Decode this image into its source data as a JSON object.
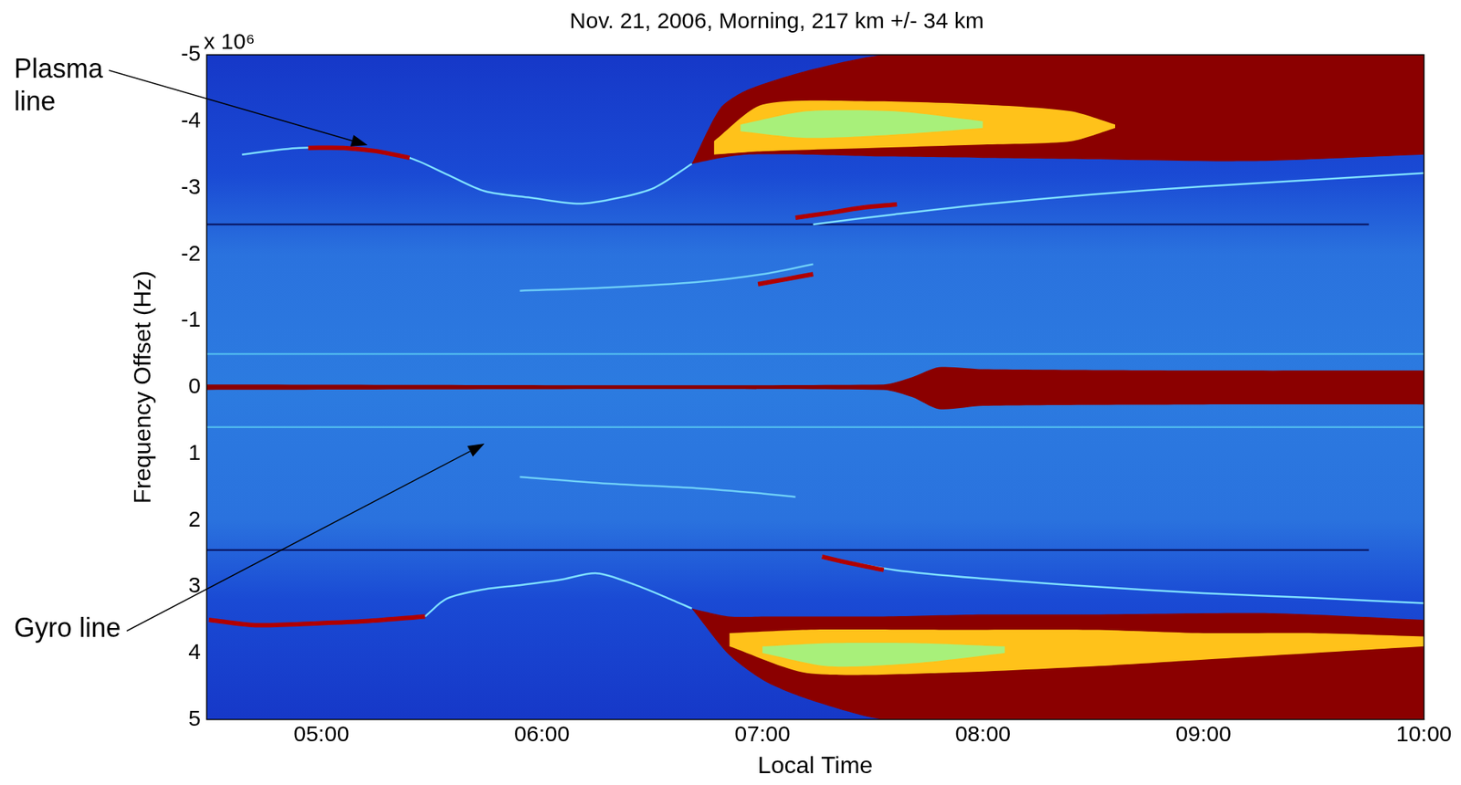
{
  "chart_data": {
    "type": "line",
    "title": "Nov. 21, 2006, Morning, 217 km +/- 34 km",
    "x_label": "Local Time",
    "y_label": "Frequency Offset (Hz)",
    "y_unit_label": "x 10⁶",
    "xlim": [
      4.48,
      10
    ],
    "xticks": [
      {
        "value": 5,
        "label": "05:00"
      },
      {
        "value": 6,
        "label": "06:00"
      },
      {
        "value": 7,
        "label": "07:00"
      },
      {
        "value": 8,
        "label": "08:00"
      },
      {
        "value": 9,
        "label": "09:00"
      },
      {
        "value": 10,
        "label": "10:00"
      }
    ],
    "ylim": [
      5,
      -5
    ],
    "yticks": [
      -5,
      -4,
      -3,
      -2,
      -1,
      0,
      1,
      2,
      3,
      4,
      5
    ],
    "grid": false,
    "annotations": [
      {
        "text": "Plasma\nline",
        "x": 5.21,
        "y": -3.64
      },
      {
        "text": "Gyro line",
        "x": 5.74,
        "y": 0.85
      }
    ],
    "series": [
      {
        "type": "band",
        "color": "#8b0000",
        "x": [
          6.68,
          6.81,
          6.93,
          7.19,
          7.55,
          8.0,
          8.5,
          9.2,
          10
        ],
        "low": [
          -3.36,
          -3.45,
          -3.5,
          -3.5,
          -3.47,
          -3.45,
          -3.43,
          -3.4,
          -3.5
        ],
        "high": [
          -3.36,
          -4.2,
          -4.47,
          -4.75,
          -5,
          -5,
          -5,
          -5,
          -5
        ]
      },
      {
        "type": "band",
        "color": "#8b0000",
        "x": [
          6.68,
          6.85,
          7.02,
          7.23,
          7.55,
          8.0,
          8.5,
          9.3,
          10
        ],
        "low": [
          3.33,
          3.45,
          3.45,
          3.45,
          3.45,
          3.42,
          3.42,
          3.4,
          3.5
        ],
        "high": [
          3.33,
          4.03,
          4.44,
          4.72,
          5,
          5,
          5,
          5,
          5
        ]
      },
      {
        "type": "band",
        "color": "#ffc21a",
        "x": [
          6.78,
          7.0,
          7.5,
          8.0,
          8.4,
          8.6
        ],
        "low": [
          -3.5,
          -3.55,
          -3.6,
          -3.65,
          -3.7,
          -3.9
        ],
        "high": [
          -3.7,
          -4.25,
          -4.3,
          -4.25,
          -4.15,
          -3.95
        ]
      },
      {
        "type": "band",
        "color": "#ffc21a",
        "x": [
          6.85,
          7.2,
          7.8,
          8.5,
          9.0,
          9.5,
          10
        ],
        "low": [
          3.7,
          3.65,
          3.65,
          3.65,
          3.7,
          3.7,
          3.75
        ],
        "high": [
          3.9,
          4.3,
          4.3,
          4.2,
          4.1,
          4.0,
          3.9
        ]
      },
      {
        "type": "band",
        "color": "#a8f07a",
        "x": [
          6.9,
          7.2,
          7.6,
          8.0
        ],
        "low": [
          -3.85,
          -3.75,
          -3.8,
          -3.9
        ],
        "high": [
          -3.95,
          -4.15,
          -4.15,
          -4.0
        ]
      },
      {
        "type": "band",
        "color": "#a8f07a",
        "x": [
          7.0,
          7.3,
          7.7,
          8.1
        ],
        "low": [
          3.9,
          3.85,
          3.85,
          3.9
        ],
        "high": [
          4.0,
          4.2,
          4.15,
          4.0
        ]
      },
      {
        "type": "band",
        "color": "#8b0000",
        "x": [
          4.48,
          7.55,
          7.68,
          7.8,
          8.0,
          9.0,
          10
        ],
        "low": [
          -0.04,
          -0.04,
          -0.15,
          -0.3,
          -0.27,
          -0.25,
          -0.25
        ],
        "high": [
          0.04,
          0.04,
          0.15,
          0.33,
          0.28,
          0.26,
          0.26
        ]
      },
      {
        "type": "line",
        "color": "#4fb8ee",
        "line_style": "solid",
        "x": [
          4.48,
          10
        ],
        "values": [
          -0.5,
          -0.5
        ]
      },
      {
        "type": "line",
        "color": "#4fb8ee",
        "line_style": "solid",
        "x": [
          4.48,
          10
        ],
        "values": [
          0.6,
          0.6
        ]
      },
      {
        "type": "line",
        "color": "#0a1a6a",
        "line_style": "solid",
        "x": [
          4.48,
          9.75
        ],
        "values": [
          -2.45,
          -2.45
        ]
      },
      {
        "type": "line",
        "color": "#0a1a6a",
        "line_style": "solid",
        "x": [
          4.48,
          9.75
        ],
        "values": [
          2.45,
          2.45
        ]
      },
      {
        "type": "line",
        "color": "#7fe0ff",
        "line_style": "solid",
        "x": [
          4.64,
          4.9,
          5.2,
          5.4,
          5.57,
          5.74,
          5.95,
          6.17,
          6.35,
          6.51,
          6.68
        ],
        "values": [
          -3.5,
          -3.6,
          -3.58,
          -3.45,
          -3.2,
          -2.95,
          -2.85,
          -2.76,
          -2.85,
          -3.0,
          -3.36
        ]
      },
      {
        "type": "line",
        "color": "#b00000",
        "line_style": "thick",
        "x": [
          4.94,
          5.1,
          5.25,
          5.4
        ],
        "values": [
          -3.6,
          -3.6,
          -3.55,
          -3.45
        ]
      },
      {
        "type": "line",
        "color": "#7fe0ff",
        "line_style": "solid",
        "x": [
          5.47,
          5.57,
          5.74,
          5.9,
          6.08,
          6.25,
          6.42,
          6.59,
          6.68
        ],
        "values": [
          3.45,
          3.18,
          3.04,
          2.98,
          2.9,
          2.8,
          2.97,
          3.2,
          3.33
        ]
      },
      {
        "type": "line",
        "color": "#b00000",
        "line_style": "thick",
        "x": [
          4.49,
          4.7,
          5.0,
          5.2,
          5.47
        ],
        "values": [
          3.5,
          3.58,
          3.55,
          3.52,
          3.45
        ]
      },
      {
        "type": "line",
        "color": "#7fe0ff",
        "line_style": "solid",
        "x": [
          7.23,
          7.6,
          8,
          8.5,
          9,
          9.5,
          10
        ],
        "values": [
          -2.45,
          -2.6,
          -2.75,
          -2.9,
          -3.02,
          -3.12,
          -3.22
        ]
      },
      {
        "type": "line",
        "color": "#b00000",
        "line_style": "thick",
        "x": [
          7.15,
          7.3,
          7.45,
          7.61
        ],
        "values": [
          -2.55,
          -2.62,
          -2.7,
          -2.75
        ]
      },
      {
        "type": "line",
        "color": "#6fd0f8",
        "line_style": "solid",
        "x": [
          5.9,
          6.3,
          6.7,
          7.0,
          7.23
        ],
        "values": [
          -1.45,
          -1.5,
          -1.58,
          -1.7,
          -1.85
        ]
      },
      {
        "type": "line",
        "color": "#b00000",
        "line_style": "thick",
        "x": [
          6.98,
          7.1,
          7.23
        ],
        "values": [
          -1.55,
          -1.62,
          -1.7
        ]
      },
      {
        "type": "line",
        "color": "#7fe0ff",
        "line_style": "solid",
        "x": [
          7.27,
          7.6,
          8,
          8.5,
          9,
          9.5,
          10
        ],
        "values": [
          2.55,
          2.75,
          2.88,
          3.0,
          3.1,
          3.17,
          3.25
        ]
      },
      {
        "type": "line",
        "color": "#b00000",
        "line_style": "thick",
        "x": [
          7.27,
          7.4,
          7.55
        ],
        "values": [
          2.55,
          2.65,
          2.75
        ]
      },
      {
        "type": "line",
        "color": "#6fd0f8",
        "line_style": "solid",
        "x": [
          5.9,
          6.3,
          6.7,
          7.0,
          7.15
        ],
        "values": [
          1.35,
          1.45,
          1.52,
          1.6,
          1.65
        ]
      }
    ]
  }
}
